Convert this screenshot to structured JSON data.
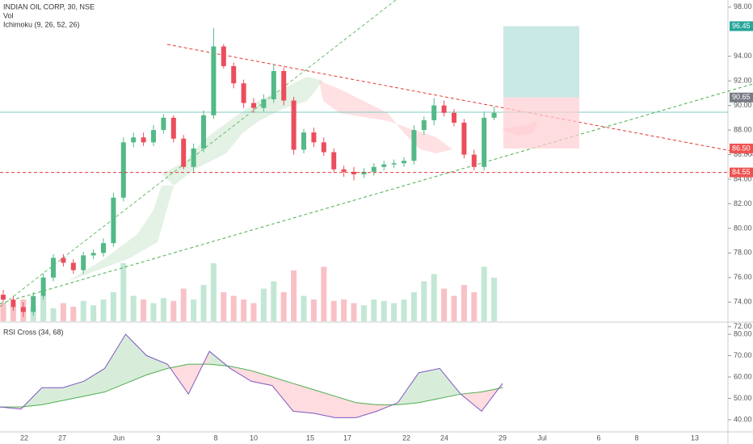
{
  "chart_data": {
    "type": "candlestick",
    "title": "INDIAN OIL CORP, 30, NSE",
    "indicators": [
      "Vol",
      "Ichimoku (9, 26, 52, 26)"
    ],
    "open": [
      74.6,
      74.2,
      73.6,
      73.2,
      74.5,
      76.0,
      77.6,
      77.2,
      76.6,
      77.8,
      78.0,
      78.8,
      82.5,
      87.0,
      87.4,
      87.0,
      88.0,
      89.0,
      87.3,
      85.0,
      86.5,
      89.2,
      94.8,
      93.2,
      91.8,
      90.2,
      89.8,
      90.5,
      92.8,
      90.4,
      86.4,
      87.8,
      87.0,
      86.2,
      84.8,
      84.6,
      84.4,
      84.6,
      85.0,
      85.2,
      85.3,
      85.5,
      88.0,
      88.8,
      90.0,
      89.4,
      88.6,
      86.0,
      85.0,
      89.0
    ],
    "high": [
      75.0,
      74.5,
      74.0,
      74.8,
      76.3,
      77.9,
      77.9,
      77.5,
      78.1,
      78.3,
      79.2,
      82.9,
      87.4,
      87.8,
      87.8,
      88.4,
      89.3,
      89.2,
      87.6,
      86.9,
      89.6,
      96.3,
      95.0,
      93.5,
      92.1,
      90.6,
      90.9,
      93.4,
      93.1,
      90.7,
      88.1,
      88.2,
      87.4,
      86.5,
      85.1,
      85.0,
      84.9,
      85.3,
      85.5,
      85.6,
      85.8,
      88.4,
      89.1,
      90.6,
      90.4,
      89.7,
      88.9,
      86.4,
      89.5,
      89.9
    ],
    "low": [
      74.0,
      73.3,
      72.8,
      72.9,
      74.2,
      75.7,
      76.9,
      76.3,
      76.3,
      77.5,
      77.7,
      78.5,
      82.2,
      86.6,
      86.7,
      86.7,
      87.7,
      87.0,
      84.8,
      84.6,
      86.2,
      88.9,
      93.0,
      91.4,
      89.8,
      89.4,
      89.5,
      90.2,
      90.0,
      86.0,
      86.1,
      86.6,
      85.9,
      84.6,
      84.2,
      83.9,
      84.1,
      84.3,
      84.7,
      84.9,
      85.0,
      85.2,
      87.6,
      88.4,
      89.1,
      88.3,
      85.7,
      84.7,
      84.7,
      88.8
    ],
    "close": [
      74.2,
      73.6,
      73.2,
      74.5,
      76.0,
      77.6,
      77.2,
      76.6,
      77.8,
      78.0,
      78.8,
      82.5,
      87.0,
      87.4,
      87.0,
      88.0,
      89.0,
      87.3,
      85.0,
      86.5,
      89.2,
      94.8,
      93.2,
      91.8,
      90.2,
      89.8,
      90.5,
      92.8,
      90.4,
      86.4,
      87.8,
      87.0,
      86.2,
      84.8,
      84.6,
      84.4,
      84.6,
      85.0,
      85.2,
      85.3,
      85.5,
      88.0,
      88.8,
      90.0,
      89.4,
      88.6,
      86.0,
      85.0,
      89.0,
      89.4
    ],
    "volume": [
      25,
      20,
      30,
      22,
      35,
      18,
      25,
      20,
      28,
      22,
      30,
      40,
      80,
      35,
      30,
      25,
      32,
      28,
      45,
      30,
      50,
      80,
      40,
      35,
      30,
      25,
      45,
      55,
      40,
      70,
      35,
      30,
      75,
      28,
      30,
      25,
      22,
      30,
      28,
      25,
      30,
      40,
      55,
      65,
      45,
      35,
      50,
      40,
      75,
      60
    ],
    "vlim": [
      0,
      100
    ],
    "colors": {
      "up": "#53b987",
      "down": "#eb4d5c"
    },
    "ylim": [
      72.44,
      98.58
    ],
    "yticks": [
      {
        "value": 98,
        "label": "98.00"
      },
      {
        "value": 94,
        "label": "94.00"
      },
      {
        "value": 92,
        "label": "92.00"
      },
      {
        "value": 90,
        "label": "90.00"
      },
      {
        "value": 88,
        "label": "88.00"
      },
      {
        "value": 86,
        "label": "86.00"
      },
      {
        "value": 84,
        "label": "84.00"
      },
      {
        "value": 82,
        "label": "82.00"
      },
      {
        "value": 80,
        "label": "80.00"
      },
      {
        "value": 78,
        "label": "78.00"
      },
      {
        "value": 76,
        "label": "76.00"
      },
      {
        "value": 74,
        "label": "74.00"
      },
      {
        "value": 72,
        "label": "72.00"
      }
    ],
    "price_tags": [
      {
        "value": 96.45,
        "label": "96.45",
        "color": "#26a69a"
      },
      {
        "value": 90.65,
        "label": "90.65",
        "color": "#787b86"
      },
      {
        "value": 86.5,
        "label": "86.50",
        "color": "#ef5350"
      },
      {
        "value": 84.55,
        "label": "84.55",
        "color": "#ef5350"
      }
    ],
    "x_labels": [
      "22",
      "27",
      "Jun",
      "3",
      "8",
      "10",
      "15",
      "17",
      "22",
      "24",
      "29",
      "Jul",
      "6",
      "8",
      "13"
    ],
    "rsi": {
      "title": "RSI Cross (34, 68)",
      "values": [
        46,
        45,
        55,
        55,
        58,
        64,
        80,
        70,
        66,
        52,
        72,
        64,
        58,
        56,
        44,
        43,
        41,
        41,
        44,
        48,
        62,
        64,
        52,
        44,
        57
      ],
      "ma": [
        46,
        46,
        47,
        49,
        51,
        53,
        57,
        61,
        64,
        66,
        66,
        65,
        63,
        60,
        57,
        54,
        51,
        48,
        47,
        47,
        48,
        50,
        52,
        53,
        55
      ],
      "ylim": [
        34.7,
        85.3
      ],
      "yticks": [
        {
          "value": 80,
          "label": "80.00"
        },
        {
          "value": 70,
          "label": "70.00"
        },
        {
          "value": 60,
          "label": "60.00"
        },
        {
          "value": 50,
          "label": "50.00"
        },
        {
          "value": 40,
          "label": "40.00"
        }
      ]
    }
  }
}
